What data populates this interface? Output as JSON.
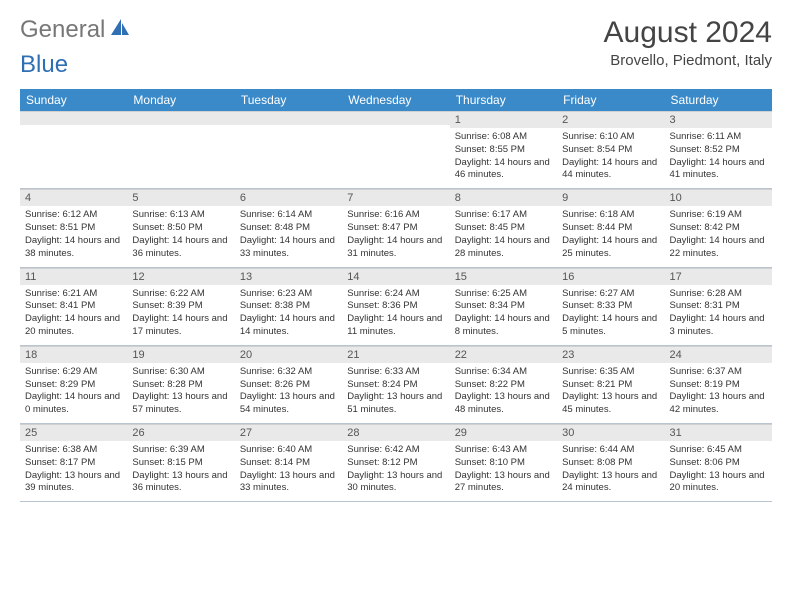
{
  "brand": {
    "word1": "General",
    "word2": "Blue"
  },
  "title": {
    "month": "August 2024",
    "location": "Brovello, Piedmont, Italy"
  },
  "colors": {
    "header_bg": "#3a8ac9",
    "header_fg": "#ffffff",
    "daynum_bg": "#e9e9e9",
    "text": "#333333",
    "border": "#b8c4d0"
  },
  "dow": [
    "Sunday",
    "Monday",
    "Tuesday",
    "Wednesday",
    "Thursday",
    "Friday",
    "Saturday"
  ],
  "weeks": [
    [
      {
        "n": "",
        "sr": "",
        "ss": "",
        "dl": ""
      },
      {
        "n": "",
        "sr": "",
        "ss": "",
        "dl": ""
      },
      {
        "n": "",
        "sr": "",
        "ss": "",
        "dl": ""
      },
      {
        "n": "",
        "sr": "",
        "ss": "",
        "dl": ""
      },
      {
        "n": "1",
        "sr": "Sunrise: 6:08 AM",
        "ss": "Sunset: 8:55 PM",
        "dl": "Daylight: 14 hours and 46 minutes."
      },
      {
        "n": "2",
        "sr": "Sunrise: 6:10 AM",
        "ss": "Sunset: 8:54 PM",
        "dl": "Daylight: 14 hours and 44 minutes."
      },
      {
        "n": "3",
        "sr": "Sunrise: 6:11 AM",
        "ss": "Sunset: 8:52 PM",
        "dl": "Daylight: 14 hours and 41 minutes."
      }
    ],
    [
      {
        "n": "4",
        "sr": "Sunrise: 6:12 AM",
        "ss": "Sunset: 8:51 PM",
        "dl": "Daylight: 14 hours and 38 minutes."
      },
      {
        "n": "5",
        "sr": "Sunrise: 6:13 AM",
        "ss": "Sunset: 8:50 PM",
        "dl": "Daylight: 14 hours and 36 minutes."
      },
      {
        "n": "6",
        "sr": "Sunrise: 6:14 AM",
        "ss": "Sunset: 8:48 PM",
        "dl": "Daylight: 14 hours and 33 minutes."
      },
      {
        "n": "7",
        "sr": "Sunrise: 6:16 AM",
        "ss": "Sunset: 8:47 PM",
        "dl": "Daylight: 14 hours and 31 minutes."
      },
      {
        "n": "8",
        "sr": "Sunrise: 6:17 AM",
        "ss": "Sunset: 8:45 PM",
        "dl": "Daylight: 14 hours and 28 minutes."
      },
      {
        "n": "9",
        "sr": "Sunrise: 6:18 AM",
        "ss": "Sunset: 8:44 PM",
        "dl": "Daylight: 14 hours and 25 minutes."
      },
      {
        "n": "10",
        "sr": "Sunrise: 6:19 AM",
        "ss": "Sunset: 8:42 PM",
        "dl": "Daylight: 14 hours and 22 minutes."
      }
    ],
    [
      {
        "n": "11",
        "sr": "Sunrise: 6:21 AM",
        "ss": "Sunset: 8:41 PM",
        "dl": "Daylight: 14 hours and 20 minutes."
      },
      {
        "n": "12",
        "sr": "Sunrise: 6:22 AM",
        "ss": "Sunset: 8:39 PM",
        "dl": "Daylight: 14 hours and 17 minutes."
      },
      {
        "n": "13",
        "sr": "Sunrise: 6:23 AM",
        "ss": "Sunset: 8:38 PM",
        "dl": "Daylight: 14 hours and 14 minutes."
      },
      {
        "n": "14",
        "sr": "Sunrise: 6:24 AM",
        "ss": "Sunset: 8:36 PM",
        "dl": "Daylight: 14 hours and 11 minutes."
      },
      {
        "n": "15",
        "sr": "Sunrise: 6:25 AM",
        "ss": "Sunset: 8:34 PM",
        "dl": "Daylight: 14 hours and 8 minutes."
      },
      {
        "n": "16",
        "sr": "Sunrise: 6:27 AM",
        "ss": "Sunset: 8:33 PM",
        "dl": "Daylight: 14 hours and 5 minutes."
      },
      {
        "n": "17",
        "sr": "Sunrise: 6:28 AM",
        "ss": "Sunset: 8:31 PM",
        "dl": "Daylight: 14 hours and 3 minutes."
      }
    ],
    [
      {
        "n": "18",
        "sr": "Sunrise: 6:29 AM",
        "ss": "Sunset: 8:29 PM",
        "dl": "Daylight: 14 hours and 0 minutes."
      },
      {
        "n": "19",
        "sr": "Sunrise: 6:30 AM",
        "ss": "Sunset: 8:28 PM",
        "dl": "Daylight: 13 hours and 57 minutes."
      },
      {
        "n": "20",
        "sr": "Sunrise: 6:32 AM",
        "ss": "Sunset: 8:26 PM",
        "dl": "Daylight: 13 hours and 54 minutes."
      },
      {
        "n": "21",
        "sr": "Sunrise: 6:33 AM",
        "ss": "Sunset: 8:24 PM",
        "dl": "Daylight: 13 hours and 51 minutes."
      },
      {
        "n": "22",
        "sr": "Sunrise: 6:34 AM",
        "ss": "Sunset: 8:22 PM",
        "dl": "Daylight: 13 hours and 48 minutes."
      },
      {
        "n": "23",
        "sr": "Sunrise: 6:35 AM",
        "ss": "Sunset: 8:21 PM",
        "dl": "Daylight: 13 hours and 45 minutes."
      },
      {
        "n": "24",
        "sr": "Sunrise: 6:37 AM",
        "ss": "Sunset: 8:19 PM",
        "dl": "Daylight: 13 hours and 42 minutes."
      }
    ],
    [
      {
        "n": "25",
        "sr": "Sunrise: 6:38 AM",
        "ss": "Sunset: 8:17 PM",
        "dl": "Daylight: 13 hours and 39 minutes."
      },
      {
        "n": "26",
        "sr": "Sunrise: 6:39 AM",
        "ss": "Sunset: 8:15 PM",
        "dl": "Daylight: 13 hours and 36 minutes."
      },
      {
        "n": "27",
        "sr": "Sunrise: 6:40 AM",
        "ss": "Sunset: 8:14 PM",
        "dl": "Daylight: 13 hours and 33 minutes."
      },
      {
        "n": "28",
        "sr": "Sunrise: 6:42 AM",
        "ss": "Sunset: 8:12 PM",
        "dl": "Daylight: 13 hours and 30 minutes."
      },
      {
        "n": "29",
        "sr": "Sunrise: 6:43 AM",
        "ss": "Sunset: 8:10 PM",
        "dl": "Daylight: 13 hours and 27 minutes."
      },
      {
        "n": "30",
        "sr": "Sunrise: 6:44 AM",
        "ss": "Sunset: 8:08 PM",
        "dl": "Daylight: 13 hours and 24 minutes."
      },
      {
        "n": "31",
        "sr": "Sunrise: 6:45 AM",
        "ss": "Sunset: 8:06 PM",
        "dl": "Daylight: 13 hours and 20 minutes."
      }
    ]
  ]
}
